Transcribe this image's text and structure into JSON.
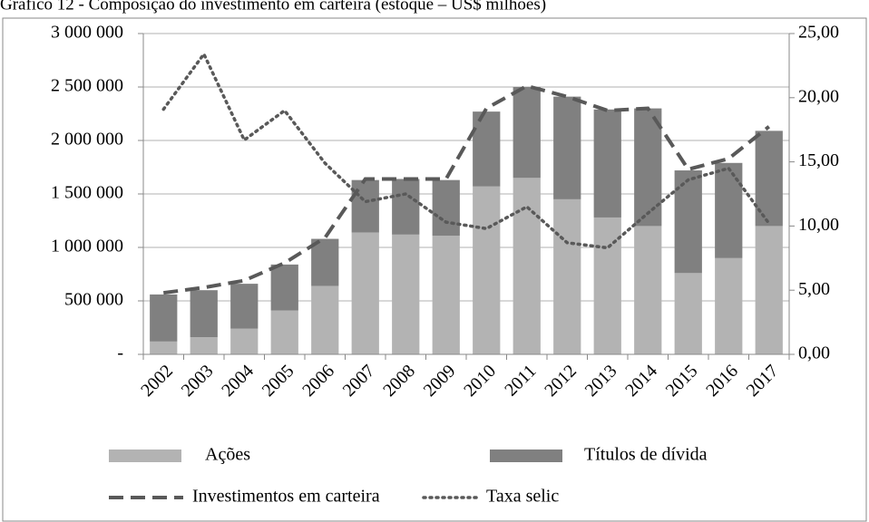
{
  "chart_data": {
    "type": "combo",
    "title": "Gráfico 12 - Composição do investimento em carteira (estoque – US$ milhões)",
    "categories": [
      "2002",
      "2003",
      "2004",
      "2005",
      "2006",
      "2007",
      "2008",
      "2009",
      "2010",
      "2011",
      "2012",
      "2013",
      "2014",
      "2015",
      "2016",
      "2017"
    ],
    "series": [
      {
        "name": "Ações",
        "style": "bar",
        "color": "#b3b3b3",
        "values": [
          120000,
          160000,
          240000,
          410000,
          640000,
          1140000,
          1120000,
          1110000,
          1570000,
          1650000,
          1450000,
          1280000,
          1200000,
          760000,
          900000,
          1200000
        ]
      },
      {
        "name": "Títulos de dívida",
        "style": "bar",
        "color": "#808080",
        "values": [
          440000,
          440000,
          420000,
          430000,
          440000,
          490000,
          520000,
          520000,
          700000,
          850000,
          960000,
          1010000,
          1100000,
          960000,
          890000,
          890000
        ]
      },
      {
        "name": "Investimentos em carteira",
        "style": "dashed",
        "color": "#595959",
        "values": [
          575000,
          625000,
          690000,
          855000,
          1090000,
          1640000,
          1640000,
          1640000,
          2300000,
          2510000,
          2410000,
          2280000,
          2300000,
          1730000,
          1830000,
          2130000
        ]
      },
      {
        "name": "Taxa selic",
        "style": "dotted",
        "color": "#595959",
        "axis": "y2",
        "values": [
          19.1,
          23.4,
          16.7,
          19.0,
          14.9,
          11.9,
          12.5,
          10.3,
          9.8,
          11.5,
          8.7,
          8.3,
          11.0,
          13.6,
          14.5,
          10.2
        ]
      }
    ],
    "ylim": [
      0,
      3000000
    ],
    "yticks": [
      {
        "value": 0,
        "label": "-"
      },
      {
        "value": 500000,
        "label": "500 000"
      },
      {
        "value": 1000000,
        "label": "1 000 000"
      },
      {
        "value": 1500000,
        "label": "1 500 000"
      },
      {
        "value": 2000000,
        "label": "2 000 000"
      },
      {
        "value": 2500000,
        "label": "2 500 000"
      },
      {
        "value": 3000000,
        "label": "3 000 000"
      }
    ],
    "y2lim": [
      0,
      25
    ],
    "y2ticks": [
      {
        "value": 0,
        "label": "0,00"
      },
      {
        "value": 5,
        "label": "5,00"
      },
      {
        "value": 10,
        "label": "10,00"
      },
      {
        "value": 15,
        "label": "15,00"
      },
      {
        "value": 20,
        "label": "20,00"
      },
      {
        "value": 25,
        "label": "25,00"
      }
    ],
    "grid": true
  }
}
